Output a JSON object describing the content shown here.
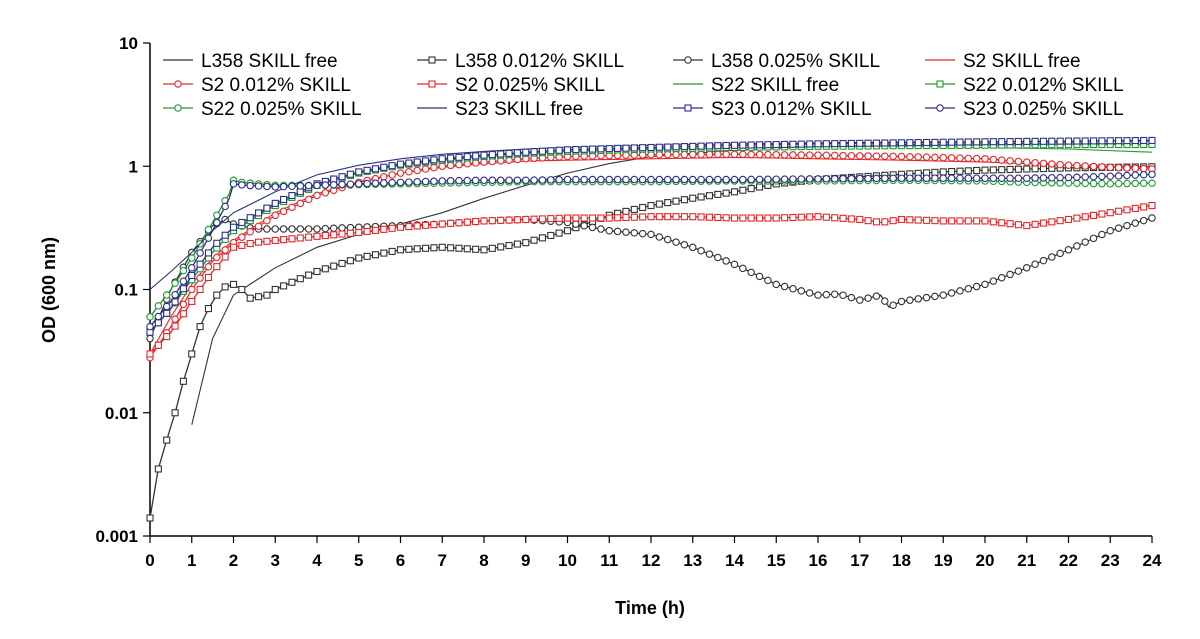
{
  "chart_data": {
    "type": "line",
    "title": "",
    "xlabel": "Time (h)",
    "ylabel": "OD (600 nm)",
    "xlim": [
      0,
      24
    ],
    "ylim": [
      0.001,
      10
    ],
    "yscale": "log",
    "x_ticks": [
      "0",
      "1",
      "2",
      "3",
      "4",
      "5",
      "6",
      "7",
      "8",
      "9",
      "10",
      "11",
      "12",
      "13",
      "14",
      "15",
      "16",
      "17",
      "18",
      "19",
      "20",
      "21",
      "22",
      "23",
      "24"
    ],
    "y_ticks": [
      "0.001",
      "0.01",
      "0.1",
      "1",
      "10"
    ],
    "grid": false,
    "legend_position": "top",
    "series": [
      {
        "name": "L358 SKILL free",
        "color": "#333333",
        "marker": "none",
        "points": [
          [
            1.0,
            0.008
          ],
          [
            1.5,
            0.04
          ],
          [
            2,
            0.09
          ],
          [
            3,
            0.15
          ],
          [
            4,
            0.22
          ],
          [
            5,
            0.28
          ],
          [
            6,
            0.34
          ],
          [
            7,
            0.42
          ],
          [
            8,
            0.55
          ],
          [
            9,
            0.7
          ],
          [
            10,
            0.88
          ],
          [
            11,
            1.05
          ],
          [
            12,
            1.2
          ],
          [
            14,
            1.35
          ],
          [
            16,
            1.45
          ],
          [
            18,
            1.5
          ],
          [
            20,
            1.52
          ],
          [
            22,
            1.55
          ],
          [
            24,
            1.5
          ]
        ]
      },
      {
        "name": "L358 0.012% SKILL",
        "color": "#333333",
        "marker": "square",
        "points": [
          [
            0,
            0.0014
          ],
          [
            0.2,
            0.0035
          ],
          [
            0.4,
            0.006
          ],
          [
            0.6,
            0.01
          ],
          [
            0.8,
            0.018
          ],
          [
            1.0,
            0.03
          ],
          [
            1.2,
            0.05
          ],
          [
            1.4,
            0.07
          ],
          [
            1.6,
            0.09
          ],
          [
            1.8,
            0.105
          ],
          [
            2.0,
            0.11
          ],
          [
            2.2,
            0.1
          ],
          [
            2.4,
            0.085
          ],
          [
            2.8,
            0.09
          ],
          [
            3,
            0.1
          ],
          [
            4,
            0.14
          ],
          [
            5,
            0.18
          ],
          [
            6,
            0.21
          ],
          [
            7,
            0.22
          ],
          [
            8,
            0.21
          ],
          [
            9,
            0.24
          ],
          [
            10,
            0.3
          ],
          [
            11,
            0.4
          ],
          [
            12,
            0.48
          ],
          [
            13,
            0.55
          ],
          [
            14,
            0.62
          ],
          [
            15,
            0.72
          ],
          [
            16,
            0.78
          ],
          [
            17,
            0.82
          ],
          [
            18,
            0.86
          ],
          [
            19,
            0.9
          ],
          [
            20,
            0.93
          ],
          [
            21,
            0.95
          ],
          [
            22,
            0.97
          ],
          [
            23,
            0.98
          ],
          [
            24,
            0.99
          ]
        ]
      },
      {
        "name": "L358 0.025% SKILL",
        "color": "#333333",
        "marker": "circle",
        "points": [
          [
            0,
            0.04
          ],
          [
            0.5,
            0.1
          ],
          [
            1,
            0.2
          ],
          [
            1.5,
            0.33
          ],
          [
            1.8,
            0.37
          ],
          [
            2,
            0.34
          ],
          [
            2.5,
            0.31
          ],
          [
            3,
            0.31
          ],
          [
            4,
            0.31
          ],
          [
            5,
            0.32
          ],
          [
            6,
            0.33
          ],
          [
            7,
            0.34
          ],
          [
            8,
            0.36
          ],
          [
            9,
            0.37
          ],
          [
            10,
            0.35
          ],
          [
            11,
            0.3
          ],
          [
            12,
            0.28
          ],
          [
            13,
            0.22
          ],
          [
            14,
            0.16
          ],
          [
            15,
            0.11
          ],
          [
            16,
            0.09
          ],
          [
            16.5,
            0.092
          ],
          [
            17,
            0.082
          ],
          [
            17.5,
            0.09
          ],
          [
            17.7,
            0.072
          ],
          [
            18,
            0.08
          ],
          [
            19,
            0.09
          ],
          [
            20,
            0.11
          ],
          [
            21,
            0.15
          ],
          [
            22,
            0.21
          ],
          [
            23,
            0.3
          ],
          [
            24,
            0.38
          ]
        ]
      },
      {
        "name": "S2 SKILL free",
        "color": "#e8262a",
        "marker": "none",
        "points": [
          [
            0,
            0.03
          ],
          [
            0.5,
            0.06
          ],
          [
            1,
            0.11
          ],
          [
            1.5,
            0.18
          ],
          [
            2,
            0.25
          ],
          [
            3,
            0.42
          ],
          [
            4,
            0.6
          ],
          [
            5,
            0.75
          ],
          [
            6,
            0.88
          ],
          [
            7,
            0.98
          ],
          [
            8,
            1.05
          ],
          [
            9,
            1.1
          ],
          [
            10,
            1.12
          ],
          [
            12,
            1.15
          ],
          [
            14,
            1.18
          ],
          [
            16,
            1.15
          ],
          [
            18,
            1.12
          ],
          [
            20,
            1.08
          ],
          [
            22,
            1.02
          ],
          [
            24,
            0.98
          ]
        ]
      },
      {
        "name": "S2 0.012% SKILL",
        "color": "#e8262a",
        "marker": "circle",
        "points": [
          [
            0,
            0.028
          ],
          [
            0.5,
            0.05
          ],
          [
            1,
            0.1
          ],
          [
            1.5,
            0.17
          ],
          [
            2,
            0.24
          ],
          [
            3,
            0.4
          ],
          [
            4,
            0.58
          ],
          [
            5,
            0.74
          ],
          [
            6,
            0.88
          ],
          [
            7,
            1.0
          ],
          [
            8,
            1.08
          ],
          [
            9,
            1.15
          ],
          [
            10,
            1.2
          ],
          [
            12,
            1.24
          ],
          [
            14,
            1.25
          ],
          [
            16,
            1.23
          ],
          [
            18,
            1.2
          ],
          [
            20,
            1.15
          ],
          [
            21,
            1.08
          ],
          [
            22,
            1.02
          ],
          [
            23,
            0.98
          ],
          [
            24,
            0.95
          ]
        ]
      },
      {
        "name": "S2 0.025% SKILL",
        "color": "#e8262a",
        "marker": "square",
        "points": [
          [
            0,
            0.03
          ],
          [
            0.5,
            0.045
          ],
          [
            1,
            0.08
          ],
          [
            1.5,
            0.14
          ],
          [
            2,
            0.22
          ],
          [
            2.5,
            0.24
          ],
          [
            3,
            0.25
          ],
          [
            4,
            0.27
          ],
          [
            5,
            0.29
          ],
          [
            6,
            0.32
          ],
          [
            7,
            0.34
          ],
          [
            8,
            0.36
          ],
          [
            9,
            0.37
          ],
          [
            10,
            0.38
          ],
          [
            11,
            0.38
          ],
          [
            12,
            0.39
          ],
          [
            13,
            0.39
          ],
          [
            14,
            0.38
          ],
          [
            15,
            0.38
          ],
          [
            16,
            0.39
          ],
          [
            17,
            0.37
          ],
          [
            17.5,
            0.35
          ],
          [
            18,
            0.37
          ],
          [
            19,
            0.36
          ],
          [
            20,
            0.36
          ],
          [
            21,
            0.33
          ],
          [
            21.5,
            0.35
          ],
          [
            22,
            0.37
          ],
          [
            23,
            0.42
          ],
          [
            24,
            0.48
          ]
        ]
      },
      {
        "name": "S22 SKILL free",
        "color": "#1f9a2e",
        "marker": "none",
        "points": [
          [
            0,
            0.05
          ],
          [
            0.5,
            0.08
          ],
          [
            1,
            0.12
          ],
          [
            1.5,
            0.2
          ],
          [
            2,
            0.3
          ],
          [
            3,
            0.5
          ],
          [
            4,
            0.72
          ],
          [
            5,
            0.9
          ],
          [
            6,
            1.05
          ],
          [
            7,
            1.15
          ],
          [
            8,
            1.22
          ],
          [
            9,
            1.28
          ],
          [
            10,
            1.32
          ],
          [
            12,
            1.38
          ],
          [
            14,
            1.42
          ],
          [
            16,
            1.45
          ],
          [
            18,
            1.45
          ],
          [
            20,
            1.42
          ],
          [
            22,
            1.38
          ],
          [
            24,
            1.3
          ]
        ]
      },
      {
        "name": "S22 0.012% SKILL",
        "color": "#1f9a2e",
        "marker": "square",
        "points": [
          [
            0,
            0.045
          ],
          [
            0.5,
            0.07
          ],
          [
            1,
            0.12
          ],
          [
            1.5,
            0.2
          ],
          [
            2,
            0.3
          ],
          [
            3,
            0.48
          ],
          [
            4,
            0.7
          ],
          [
            5,
            0.88
          ],
          [
            6,
            1.02
          ],
          [
            7,
            1.12
          ],
          [
            8,
            1.2
          ],
          [
            9,
            1.27
          ],
          [
            10,
            1.32
          ],
          [
            12,
            1.38
          ],
          [
            14,
            1.42
          ],
          [
            16,
            1.45
          ],
          [
            18,
            1.47
          ],
          [
            20,
            1.48
          ],
          [
            22,
            1.5
          ],
          [
            24,
            1.5
          ]
        ]
      },
      {
        "name": "S22 0.025% SKILL",
        "color": "#1f9a2e",
        "marker": "circle",
        "points": [
          [
            0,
            0.06
          ],
          [
            0.5,
            0.1
          ],
          [
            1,
            0.18
          ],
          [
            1.5,
            0.35
          ],
          [
            1.9,
            0.6
          ],
          [
            2,
            0.77
          ],
          [
            2.2,
            0.74
          ],
          [
            3,
            0.7
          ],
          [
            4,
            0.7
          ],
          [
            5,
            0.71
          ],
          [
            6,
            0.72
          ],
          [
            7,
            0.73
          ],
          [
            8,
            0.74
          ],
          [
            9,
            0.75
          ],
          [
            10,
            0.75
          ],
          [
            12,
            0.75
          ],
          [
            14,
            0.76
          ],
          [
            16,
            0.76
          ],
          [
            18,
            0.77
          ],
          [
            20,
            0.76
          ],
          [
            21,
            0.74
          ],
          [
            22,
            0.73
          ],
          [
            23,
            0.72
          ],
          [
            24,
            0.73
          ]
        ]
      },
      {
        "name": "S23 SKILL free",
        "color": "#2b2f8a",
        "marker": "none",
        "points": [
          [
            0,
            0.1
          ],
          [
            0.5,
            0.14
          ],
          [
            1,
            0.2
          ],
          [
            1.5,
            0.3
          ],
          [
            2,
            0.42
          ],
          [
            3,
            0.62
          ],
          [
            4,
            0.85
          ],
          [
            5,
            1.02
          ],
          [
            6,
            1.15
          ],
          [
            7,
            1.25
          ],
          [
            8,
            1.32
          ],
          [
            9,
            1.38
          ],
          [
            10,
            1.42
          ],
          [
            12,
            1.48
          ],
          [
            14,
            1.52
          ],
          [
            16,
            1.55
          ],
          [
            18,
            1.57
          ],
          [
            20,
            1.58
          ],
          [
            22,
            1.6
          ],
          [
            24,
            1.6
          ]
        ]
      },
      {
        "name": "S23 0.012% SKILL",
        "color": "#2b2f8a",
        "marker": "square",
        "points": [
          [
            0,
            0.045
          ],
          [
            0.5,
            0.07
          ],
          [
            1,
            0.13
          ],
          [
            1.5,
            0.22
          ],
          [
            2,
            0.32
          ],
          [
            3,
            0.5
          ],
          [
            4,
            0.72
          ],
          [
            5,
            0.9
          ],
          [
            6,
            1.04
          ],
          [
            7,
            1.15
          ],
          [
            8,
            1.23
          ],
          [
            9,
            1.3
          ],
          [
            10,
            1.36
          ],
          [
            12,
            1.42
          ],
          [
            14,
            1.48
          ],
          [
            16,
            1.52
          ],
          [
            18,
            1.55
          ],
          [
            20,
            1.58
          ],
          [
            22,
            1.6
          ],
          [
            24,
            1.62
          ]
        ]
      },
      {
        "name": "S23 0.025% SKILL",
        "color": "#2b2f8a",
        "marker": "circle",
        "points": [
          [
            0,
            0.05
          ],
          [
            0.5,
            0.08
          ],
          [
            1,
            0.15
          ],
          [
            1.5,
            0.3
          ],
          [
            1.9,
            0.55
          ],
          [
            2,
            0.72
          ],
          [
            2.3,
            0.7
          ],
          [
            3,
            0.68
          ],
          [
            4,
            0.7
          ],
          [
            5,
            0.72
          ],
          [
            6,
            0.74
          ],
          [
            7,
            0.76
          ],
          [
            8,
            0.77
          ],
          [
            9,
            0.77
          ],
          [
            10,
            0.78
          ],
          [
            12,
            0.78
          ],
          [
            14,
            0.78
          ],
          [
            16,
            0.79
          ],
          [
            18,
            0.8
          ],
          [
            20,
            0.8
          ],
          [
            21,
            0.8
          ],
          [
            22,
            0.81
          ],
          [
            23,
            0.83
          ],
          [
            24,
            0.86
          ]
        ]
      }
    ]
  }
}
